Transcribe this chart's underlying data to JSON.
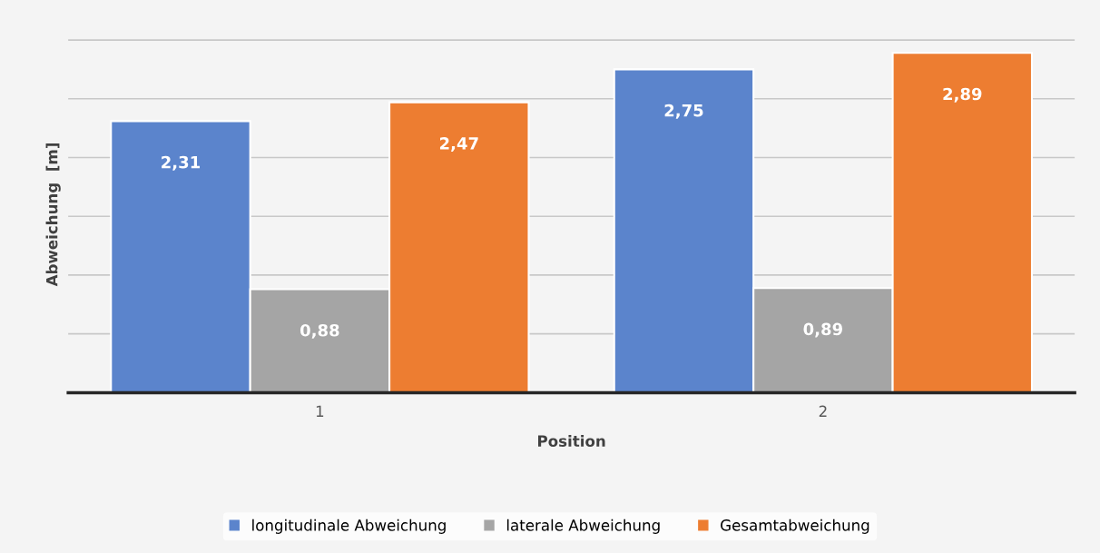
{
  "chart_data": {
    "type": "bar",
    "xlabel": "Position",
    "ylabel": "Abweichung  [m]",
    "categories": [
      "1",
      "2"
    ],
    "series": [
      {
        "name": "longitudinale Abweichung",
        "color": "#5b84cc",
        "values": [
          2.31,
          2.75
        ],
        "value_labels": [
          "2,31",
          "2,75"
        ]
      },
      {
        "name": "laterale Abweichung",
        "color": "#a5a5a5",
        "values": [
          0.88,
          0.89
        ],
        "value_labels": [
          "0,88",
          "0,89"
        ]
      },
      {
        "name": "Gesamtabweichung",
        "color": "#ed7d31",
        "values": [
          2.47,
          2.89
        ],
        "value_labels": [
          "2,47",
          "2,89"
        ]
      }
    ],
    "tick_labels": "x",
    "grid": "y",
    "legend": "bottom"
  }
}
